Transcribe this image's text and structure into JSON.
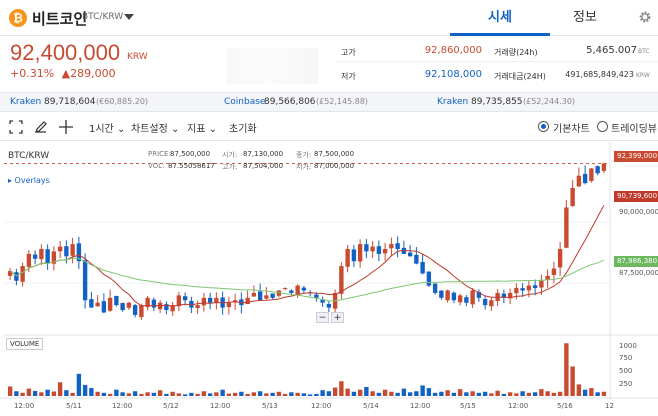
{
  "header": {
    "coin_symbol": "₿",
    "coin_name": "비트코인",
    "pair": "BTC/KRW",
    "tabs": [
      {
        "label": "시세",
        "active": true
      },
      {
        "label": "정보",
        "active": false
      }
    ]
  },
  "price": {
    "current": "92,400,000",
    "unit": "KRW",
    "change_pct": "+0.31%",
    "change_amount": "▲289,000"
  },
  "stats": {
    "high_label": "고가",
    "high_value": "92,860,000",
    "low_label": "저가",
    "low_value": "92,108,000",
    "volume_label": "거래량(24h)",
    "volume_value": "5,465.007",
    "volume_unit": "BTC",
    "turnover_label": "거래대금(24H)",
    "turnover_value": "491,685,849,423",
    "turnover_unit": "KRW"
  },
  "ticker": [
    {
      "exchange": "Kraken",
      "value": "89,718,604",
      "sub": "(€60,885.20)"
    },
    {
      "exchange": "Coinbase",
      "value": "89,566,806",
      "sub": "(£52,145.88)"
    },
    {
      "exchange": "Kraken",
      "value": "89,735,855",
      "sub": "(£52,244.30)"
    }
  ],
  "toolbar": {
    "interval": "1시간",
    "chart_settings": "차트설정",
    "indicators": "지표",
    "reset": "초기화",
    "basic_chart": "기본차트",
    "tradingview": "트레이딩뷰"
  },
  "chart": {
    "pair_label": "BTC/KRW",
    "overlays_label": "▸ Overlays",
    "ohlc": {
      "price_label": "PRICE:",
      "price": "87,500,000",
      "open_label": "시가:",
      "open": "87,130,000",
      "close_label": "종가:",
      "close": "87,500,000",
      "vol_label": "VOL:",
      "vol": "87.55058617",
      "high_label": "고가:",
      "high": "87,504,000",
      "low_label": "저가:",
      "low": "87,000,000"
    },
    "volume_label": "VOLUME",
    "price_tags": {
      "last": "92,399,000",
      "ma_short": "90,739,600",
      "ma_long": "87,986,380"
    },
    "y_ticks": [
      "90,000,000",
      "87,500,000"
    ],
    "vol_ticks": [
      "1000",
      "750",
      "500",
      "250"
    ],
    "x_ticks": [
      "12:00",
      "5/11",
      "12:00",
      "5/12",
      "12:00",
      "5/13",
      "12:00",
      "5/14",
      "12:00",
      "5/15",
      "12:00",
      "5/16",
      "12"
    ],
    "colors": {
      "up": "#c84a31",
      "down": "#1261c4",
      "ma_short": "#c0392b",
      "ma_long": "#7ec872"
    }
  },
  "chart_data": {
    "type": "candlestick",
    "pair": "BTC/KRW",
    "interval": "1시간",
    "y_range": [
      85500000,
      93200000
    ],
    "y_ticks": [
      90000000,
      87500000
    ],
    "last_price": 92399000,
    "ma_short_last": 90739600,
    "ma_long_last": 87986380,
    "volume_range": [
      0,
      1100
    ],
    "volume_ticks": [
      1000,
      750,
      500,
      250
    ],
    "x_ticks": [
      "12:00",
      "5/11",
      "12:00",
      "5/12",
      "12:00",
      "5/13",
      "12:00",
      "5/14",
      "12:00",
      "5/15",
      "12:00",
      "5/16",
      "12"
    ],
    "close_series": [
      88000000,
      87600000,
      88200000,
      88700000,
      88500000,
      88900000,
      88300000,
      88800000,
      89000000,
      88600000,
      89100000,
      88400000,
      86800000,
      86500000,
      86700000,
      86300000,
      86900000,
      86600000,
      86400000,
      86700000,
      86200000,
      86600000,
      86900000,
      86500000,
      86700000,
      86400000,
      86600000,
      87000000,
      86800000,
      86500000,
      86600000,
      86900000,
      86700000,
      86900000,
      86500000,
      86700000,
      86800000,
      86600000,
      86900000,
      87100000,
      86800000,
      87000000,
      86900000,
      87200000,
      87300000,
      87100000,
      87400000,
      87200000,
      87100000,
      86900000,
      86700000,
      86500000,
      87100000,
      88200000,
      88900000,
      88400000,
      89100000,
      88800000,
      89000000,
      88700000,
      88900000,
      89100000,
      88900000,
      88700000,
      88600000,
      88300000,
      87900000,
      87400000,
      87100000,
      86900000,
      87200000,
      86800000,
      87000000,
      86700000,
      87200000,
      86900000,
      86600000,
      86800000,
      87100000,
      86900000,
      87100000,
      87300000,
      87200000,
      87400000,
      87300000,
      87600000,
      87800000,
      88100000,
      88900000,
      90600000,
      91400000,
      91900000,
      91600000,
      92200000,
      92000000,
      92399000
    ],
    "volumes": [
      180,
      90,
      60,
      140,
      95,
      70,
      120,
      85,
      260,
      110,
      60,
      420,
      210,
      150,
      80,
      60,
      40,
      120,
      70,
      50,
      90,
      40,
      70,
      60,
      110,
      40,
      80,
      50,
      30,
      60,
      40,
      90,
      50,
      70,
      120,
      45,
      60,
      80,
      40,
      70,
      90,
      50,
      60,
      80,
      40,
      70,
      60,
      50,
      30,
      40,
      110,
      90,
      160,
      280,
      140,
      80,
      120,
      170,
      90,
      60,
      120,
      80,
      60,
      140,
      70,
      90,
      200,
      150,
      60,
      80,
      110,
      60,
      130,
      70,
      90,
      60,
      80,
      50,
      100,
      40,
      70,
      50,
      90,
      60,
      70,
      130,
      90,
      60,
      80,
      1000,
      560,
      220,
      120,
      150,
      70,
      80
    ]
  }
}
